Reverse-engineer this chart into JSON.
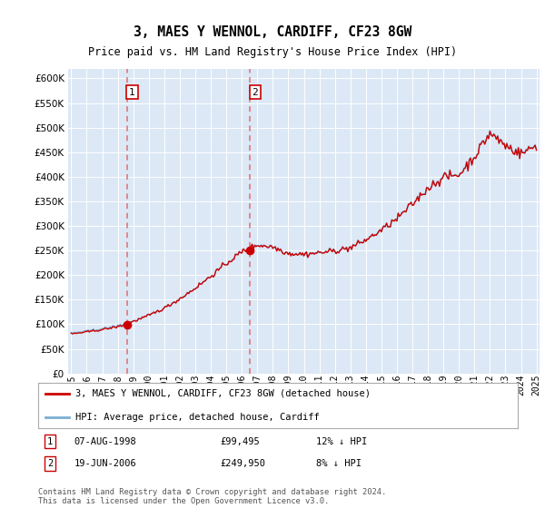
{
  "title": "3, MAES Y WENNOL, CARDIFF, CF23 8GW",
  "subtitle": "Price paid vs. HM Land Registry's House Price Index (HPI)",
  "ylim": [
    0,
    620000
  ],
  "yticks": [
    0,
    50000,
    100000,
    150000,
    200000,
    250000,
    300000,
    350000,
    400000,
    450000,
    500000,
    550000,
    600000
  ],
  "background_color": "#ffffff",
  "plot_bg_color": "#dce8f5",
  "grid_color": "#ffffff",
  "legend_label_red": "3, MAES Y WENNOL, CARDIFF, CF23 8GW (detached house)",
  "legend_label_blue": "HPI: Average price, detached house, Cardiff",
  "hpi_color": "#7bafd4",
  "sale_color": "#cc0000",
  "vline_color": "#e06060",
  "footer": "Contains HM Land Registry data © Crown copyright and database right 2024.\nThis data is licensed under the Open Government Licence v3.0.",
  "x_labels": [
    "1995",
    "1996",
    "1997",
    "1998",
    "1999",
    "2000",
    "2001",
    "2002",
    "2003",
    "2004",
    "2005",
    "2006",
    "2007",
    "2008",
    "2009",
    "2010",
    "2011",
    "2012",
    "2013",
    "2014",
    "2015",
    "2016",
    "2017",
    "2018",
    "2019",
    "2020",
    "2021",
    "2022",
    "2023",
    "2024",
    "2025"
  ],
  "ann1_date": "07-AUG-1998",
  "ann1_price": "£99,495",
  "ann1_hpi": "12% ↓ HPI",
  "ann2_date": "19-JUN-2006",
  "ann2_price": "£249,950",
  "ann2_hpi": "8% ↓ HPI",
  "sale1_value": 99495,
  "sale2_value": 249950,
  "sale1_month": 43,
  "sale2_month": 138
}
